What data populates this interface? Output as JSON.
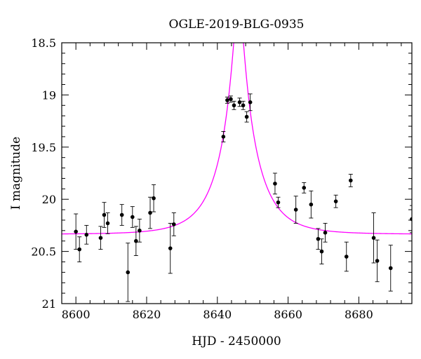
{
  "chart_data": {
    "type": "scatter",
    "title": "OGLE-2019-BLG-0935",
    "xlabel": "HJD - 2450000",
    "ylabel": "I magnitude",
    "xlim": [
      8596,
      8695
    ],
    "ylim": [
      21.0,
      18.5
    ],
    "y_inverted": true,
    "xticks": [
      8600,
      8620,
      8640,
      8660,
      8680
    ],
    "yticks": [
      18.5,
      19,
      19.5,
      20,
      20.5,
      21
    ],
    "ytick_labels": [
      "18.5",
      "19",
      "19.5",
      "20",
      "20.5",
      "21"
    ],
    "grid": false,
    "colors": {
      "data": "#000000",
      "model": "#ff00ff",
      "axes": "#000000"
    },
    "series": [
      {
        "kind": "points_with_errorbars",
        "points": [
          {
            "x": 8600.0,
            "y": 20.31,
            "err": 0.17
          },
          {
            "x": 8601.0,
            "y": 20.48,
            "err": 0.12
          },
          {
            "x": 8603.0,
            "y": 20.34,
            "err": 0.09
          },
          {
            "x": 8607.0,
            "y": 20.37,
            "err": 0.11
          },
          {
            "x": 8608.0,
            "y": 20.15,
            "err": 0.12
          },
          {
            "x": 8609.0,
            "y": 20.23,
            "err": 0.1
          },
          {
            "x": 8613.0,
            "y": 20.15,
            "err": 0.1
          },
          {
            "x": 8614.7,
            "y": 20.7,
            "err": 0.28
          },
          {
            "x": 8616.0,
            "y": 20.17,
            "err": 0.1
          },
          {
            "x": 8617.0,
            "y": 20.4,
            "err": 0.14
          },
          {
            "x": 8618.0,
            "y": 20.3,
            "err": 0.11
          },
          {
            "x": 8621.0,
            "y": 20.13,
            "err": 0.15
          },
          {
            "x": 8622.0,
            "y": 19.99,
            "err": 0.13
          },
          {
            "x": 8626.7,
            "y": 20.47,
            "err": 0.24
          },
          {
            "x": 8627.7,
            "y": 20.24,
            "err": 0.11
          },
          {
            "x": 8641.7,
            "y": 19.4,
            "err": 0.05
          },
          {
            "x": 8642.8,
            "y": 19.05,
            "err": 0.03
          },
          {
            "x": 8643.8,
            "y": 19.04,
            "err": 0.03
          },
          {
            "x": 8644.7,
            "y": 19.1,
            "err": 0.04
          },
          {
            "x": 8646.3,
            "y": 19.07,
            "err": 0.04
          },
          {
            "x": 8647.3,
            "y": 19.1,
            "err": 0.04
          },
          {
            "x": 8648.3,
            "y": 19.21,
            "err": 0.05
          },
          {
            "x": 8649.3,
            "y": 19.07,
            "err": 0.08
          },
          {
            "x": 8656.3,
            "y": 19.85,
            "err": 0.1
          },
          {
            "x": 8657.2,
            "y": 20.03,
            "err": 0.05
          },
          {
            "x": 8662.2,
            "y": 20.1,
            "err": 0.13
          },
          {
            "x": 8664.5,
            "y": 19.89,
            "err": 0.05
          },
          {
            "x": 8666.5,
            "y": 20.05,
            "err": 0.13
          },
          {
            "x": 8668.5,
            "y": 20.38,
            "err": 0.1
          },
          {
            "x": 8669.5,
            "y": 20.5,
            "err": 0.12
          },
          {
            "x": 8670.5,
            "y": 20.32,
            "err": 0.09
          },
          {
            "x": 8673.5,
            "y": 20.02,
            "err": 0.06
          },
          {
            "x": 8676.5,
            "y": 20.55,
            "err": 0.14
          },
          {
            "x": 8677.7,
            "y": 19.82,
            "err": 0.06
          },
          {
            "x": 8684.2,
            "y": 20.37,
            "err": 0.24
          },
          {
            "x": 8685.2,
            "y": 20.59,
            "err": 0.2
          },
          {
            "x": 8689.0,
            "y": 20.66,
            "err": 0.22
          },
          {
            "x": 8695.0,
            "y": 20.19,
            "err": 0.13
          }
        ]
      },
      {
        "kind": "model_curve",
        "model": "point-lens microlensing",
        "params": {
          "t0": 8646.0,
          "u0": 0.127,
          "tE": 10.0,
          "baseline_mag": 20.335
        }
      }
    ]
  }
}
